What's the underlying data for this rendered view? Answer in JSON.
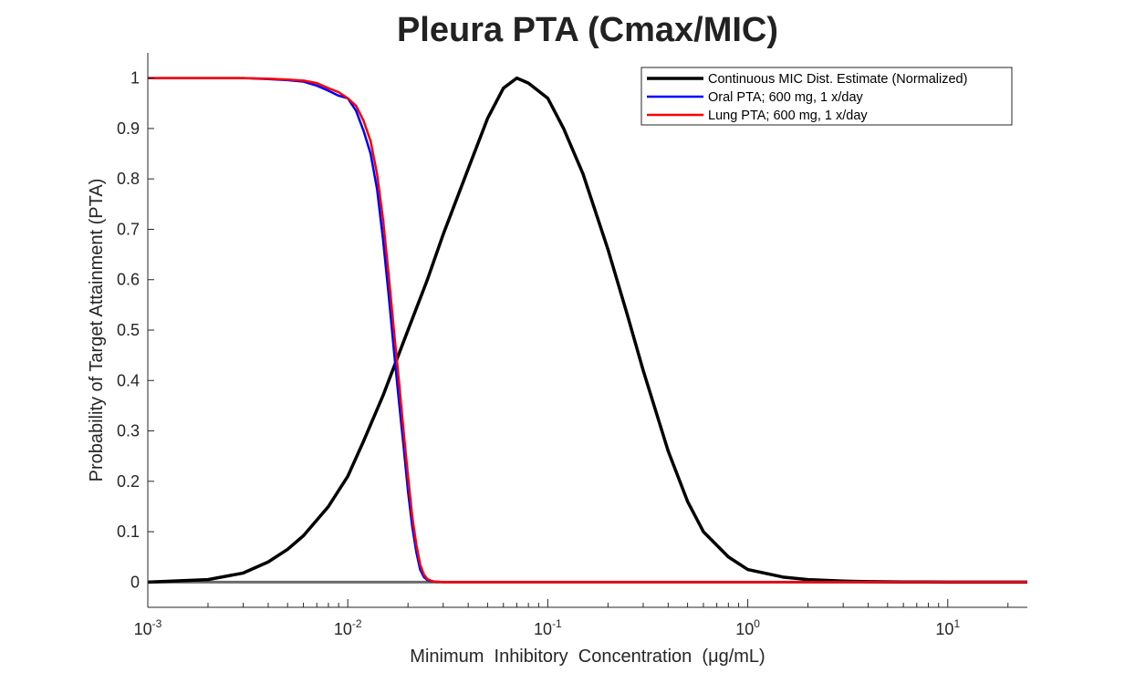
{
  "chart_data": {
    "type": "line",
    "title": "Pleura PTA (Cmax/MIC)",
    "xlabel": "Minimum  Inhibitory  Concentration  (μg/mL)",
    "ylabel": "Probability of Target Attainment (PTA)",
    "xscale": "log",
    "xlim": [
      0.001,
      25
    ],
    "ylim": [
      -0.05,
      1.05
    ],
    "x_ticks": [
      {
        "base": "10",
        "exp": "-3",
        "value": 0.001
      },
      {
        "base": "10",
        "exp": "-2",
        "value": 0.01
      },
      {
        "base": "10",
        "exp": "-1",
        "value": 0.1
      },
      {
        "base": "10",
        "exp": "0",
        "value": 1
      },
      {
        "base": "10",
        "exp": "1",
        "value": 10
      }
    ],
    "y_ticks": [
      "0",
      "0.1",
      "0.2",
      "0.3",
      "0.4",
      "0.5",
      "0.6",
      "0.7",
      "0.8",
      "0.9",
      "1"
    ],
    "legend_position": "top-right",
    "grid": false,
    "series": [
      {
        "name": "Continuous MIC Dist. Estimate (Normalized)",
        "color": "#000000",
        "x": [
          0.001,
          0.002,
          0.003,
          0.004,
          0.005,
          0.006,
          0.008,
          0.01,
          0.012,
          0.015,
          0.02,
          0.025,
          0.03,
          0.04,
          0.05,
          0.06,
          0.07,
          0.08,
          0.1,
          0.12,
          0.15,
          0.2,
          0.25,
          0.3,
          0.4,
          0.5,
          0.6,
          0.8,
          1,
          1.5,
          2,
          3,
          4,
          6,
          10,
          25
        ],
        "y": [
          0.0,
          0.005,
          0.018,
          0.04,
          0.065,
          0.092,
          0.15,
          0.21,
          0.28,
          0.37,
          0.5,
          0.6,
          0.69,
          0.82,
          0.92,
          0.98,
          1.0,
          0.99,
          0.96,
          0.9,
          0.81,
          0.66,
          0.53,
          0.42,
          0.26,
          0.16,
          0.1,
          0.05,
          0.025,
          0.01,
          0.005,
          0.002,
          0.0008,
          0.0002,
          0.0,
          0.0
        ]
      },
      {
        "name": "Oral PTA; 600 mg, 1 x/day",
        "color": "#0000ff",
        "x": [
          0.001,
          0.002,
          0.003,
          0.004,
          0.005,
          0.006,
          0.007,
          0.008,
          0.009,
          0.01,
          0.011,
          0.012,
          0.013,
          0.014,
          0.015,
          0.016,
          0.017,
          0.018,
          0.019,
          0.02,
          0.021,
          0.022,
          0.023,
          0.024,
          0.025,
          0.026,
          0.027,
          0.03,
          0.05,
          0.1,
          1,
          10,
          25
        ],
        "y": [
          1.0,
          1.0,
          1.0,
          0.998,
          0.996,
          0.993,
          0.985,
          0.975,
          0.965,
          0.96,
          0.935,
          0.895,
          0.85,
          0.78,
          0.68,
          0.57,
          0.46,
          0.36,
          0.27,
          0.18,
          0.11,
          0.06,
          0.025,
          0.01,
          0.004,
          0.002,
          0.001,
          0.0,
          0.0,
          0.0,
          0.0,
          0.0,
          0.0
        ]
      },
      {
        "name": "Lung PTA; 600 mg, 1 x/day",
        "color": "#ff0000",
        "x": [
          0.001,
          0.002,
          0.003,
          0.004,
          0.005,
          0.006,
          0.007,
          0.008,
          0.009,
          0.01,
          0.011,
          0.012,
          0.013,
          0.014,
          0.015,
          0.016,
          0.017,
          0.018,
          0.019,
          0.02,
          0.021,
          0.022,
          0.023,
          0.024,
          0.025,
          0.026,
          0.027,
          0.03,
          0.05,
          0.1,
          1,
          10,
          25
        ],
        "y": [
          1.0,
          1.0,
          1.0,
          0.999,
          0.997,
          0.995,
          0.99,
          0.98,
          0.972,
          0.96,
          0.945,
          0.915,
          0.875,
          0.81,
          0.72,
          0.61,
          0.5,
          0.4,
          0.3,
          0.21,
          0.13,
          0.075,
          0.035,
          0.015,
          0.006,
          0.003,
          0.001,
          0.0,
          0.0,
          0.0,
          0.0,
          0.0,
          0.0
        ]
      }
    ]
  }
}
